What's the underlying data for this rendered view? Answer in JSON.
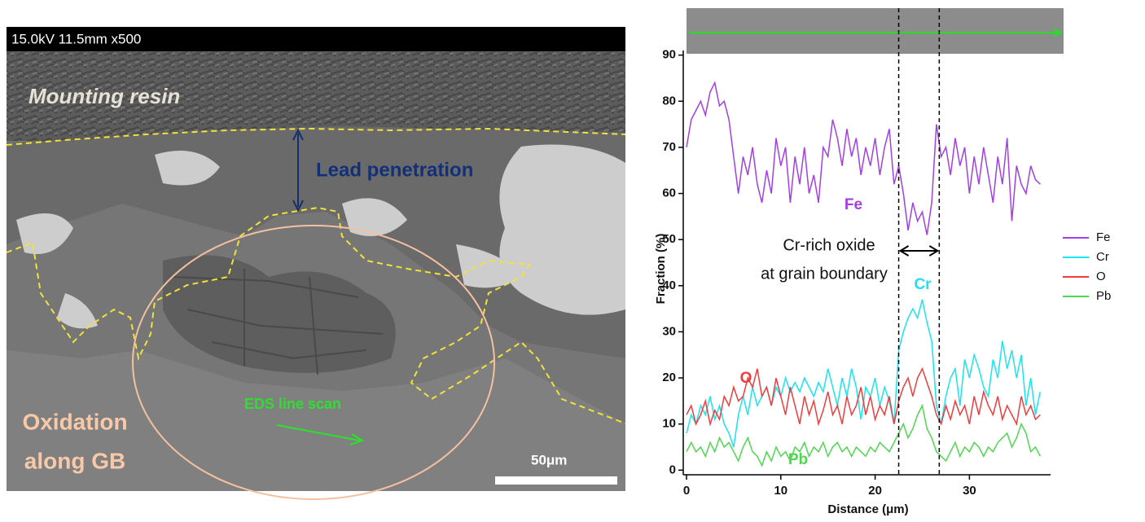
{
  "image": {
    "info_bar": "15.0kV 11.5mm x500",
    "mounting_resin": "Mounting resin",
    "lead_penetration": "Lead penetration",
    "oxidation_lines": [
      "Oxidation",
      "along GB"
    ],
    "eds_line_scan": "EDS line scan",
    "scale_bar": "50μm"
  },
  "chart_data": {
    "type": "line",
    "x_label": "Distance (μm)",
    "y_label": "Fraction (%)",
    "x": [
      0,
      0.5,
      1,
      1.5,
      2,
      2.5,
      3,
      3.5,
      4,
      4.5,
      5,
      5.5,
      6,
      6.5,
      7,
      7.5,
      8,
      8.5,
      9,
      9.5,
      10,
      10.5,
      11,
      11.5,
      12,
      12.5,
      13,
      13.5,
      14,
      14.5,
      15,
      15.5,
      16,
      16.5,
      17,
      17.5,
      18,
      18.5,
      19,
      19.5,
      20,
      20.5,
      21,
      21.5,
      22,
      22.5,
      23,
      23.5,
      24,
      24.5,
      25,
      25.5,
      26,
      26.5,
      27,
      27.5,
      28,
      28.5,
      29,
      29.5,
      30,
      30.5,
      31,
      31.5,
      32,
      32.5,
      33,
      33.5,
      34,
      34.5,
      35,
      35.5,
      36,
      36.5,
      37,
      37.5
    ],
    "series": [
      {
        "name": "Fe",
        "color": "#a33fe3",
        "values": [
          70,
          76,
          78,
          80,
          77,
          82,
          84,
          79,
          80,
          76,
          68,
          60,
          68,
          64,
          70,
          62,
          58,
          65,
          60,
          72,
          66,
          70,
          58,
          68,
          62,
          70,
          60,
          64,
          58,
          70,
          68,
          76,
          72,
          66,
          74,
          68,
          72,
          64,
          70,
          66,
          72,
          64,
          70,
          74,
          62,
          66,
          60,
          52,
          58,
          54,
          56,
          51,
          58,
          75,
          68,
          70,
          64,
          72,
          66,
          70,
          60,
          68,
          62,
          70,
          64,
          58,
          68,
          62,
          72,
          54,
          66,
          62,
          60,
          66,
          63,
          62
        ]
      },
      {
        "name": "Cr",
        "color": "#18e4f4",
        "values": [
          8,
          12,
          10,
          14,
          12,
          16,
          11,
          14,
          10,
          8,
          5,
          12,
          16,
          12,
          18,
          14,
          16,
          18,
          14,
          18,
          16,
          20,
          17,
          19,
          17,
          20,
          18,
          16,
          19,
          17,
          22,
          18,
          14,
          20,
          16,
          22,
          18,
          11,
          18,
          16,
          20,
          14,
          18,
          15,
          10,
          26,
          30,
          33,
          35,
          33,
          37,
          32,
          28,
          14,
          10,
          16,
          20,
          22,
          14,
          24,
          20,
          25,
          22,
          18,
          16,
          24,
          20,
          28,
          22,
          26,
          20,
          25,
          14,
          20,
          12,
          17
        ]
      },
      {
        "name": "O",
        "color": "#f03c3c",
        "values": [
          12,
          14,
          10,
          12,
          15,
          10,
          13,
          11,
          16,
          14,
          18,
          15,
          16,
          20,
          18,
          22,
          16,
          18,
          14,
          20,
          16,
          12,
          18,
          14,
          10,
          16,
          12,
          15,
          10,
          13,
          17,
          12,
          14,
          10,
          16,
          12,
          14,
          18,
          12,
          16,
          11,
          14,
          12,
          16,
          10,
          15,
          18,
          20,
          16,
          20,
          22,
          19,
          16,
          12,
          10,
          14,
          11,
          15,
          12,
          14,
          10,
          16,
          12,
          17,
          14,
          12,
          16,
          11,
          14,
          12,
          10,
          16,
          12,
          14,
          11,
          12
        ]
      },
      {
        "name": "Pb",
        "color": "#4ed84e",
        "values": [
          4,
          6,
          4,
          5,
          3,
          6,
          4,
          7,
          5,
          6,
          4,
          2,
          5,
          7,
          4,
          3,
          1,
          4,
          2,
          5,
          3,
          4,
          2,
          5,
          4,
          6,
          3,
          5,
          4,
          6,
          3,
          5,
          6,
          4,
          5,
          3,
          5,
          4,
          3,
          5,
          4,
          6,
          5,
          4,
          6,
          8,
          10,
          7,
          9,
          12,
          14,
          9,
          7,
          4,
          3,
          2,
          4,
          6,
          3,
          5,
          4,
          6,
          5,
          3,
          5,
          4,
          6,
          7,
          8,
          5,
          7,
          10,
          8,
          4,
          5,
          3
        ]
      }
    ],
    "xlim": [
      0,
      38.6
    ],
    "ylim": [
      -1,
      91
    ],
    "xticks": [
      0,
      10,
      20,
      30
    ],
    "yticks": [
      0,
      10,
      20,
      30,
      40,
      50,
      60,
      70,
      80,
      90
    ],
    "boundary_lines": [
      22.5,
      26.8
    ],
    "annotation_lines": [
      "Cr-rich oxide",
      "at grain boundary"
    ],
    "element_labels": [
      "Fe",
      "Cr",
      "O",
      "Pb"
    ],
    "legend": "right"
  }
}
